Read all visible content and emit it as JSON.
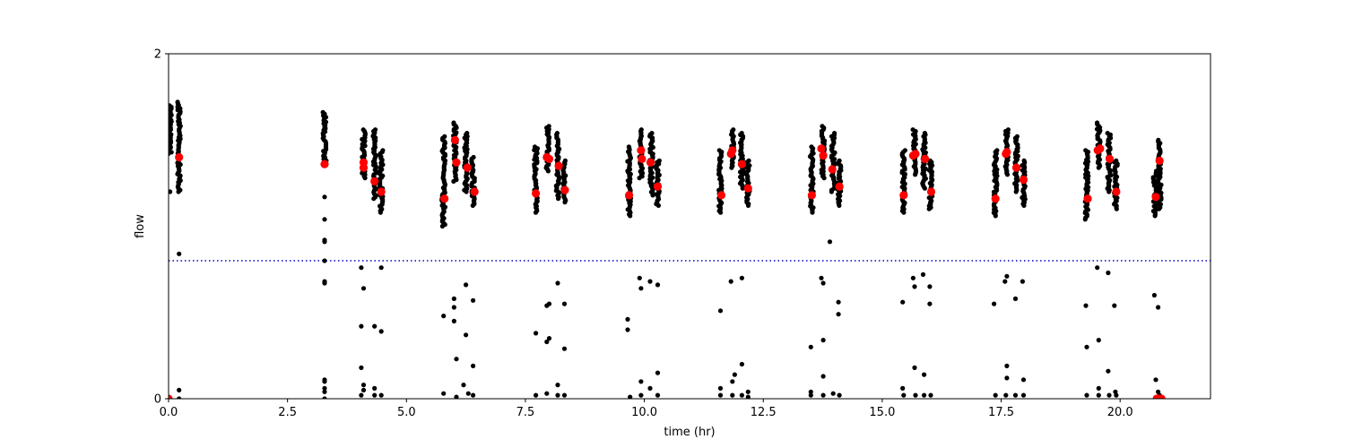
{
  "chart_data": {
    "type": "scatter",
    "title": "",
    "xlabel": "time (hr)",
    "ylabel": "flow",
    "xlim": [
      0,
      21.9
    ],
    "ylim": [
      0,
      2
    ],
    "x_ticks": [
      0,
      2.5,
      5,
      7.5,
      10,
      12.5,
      15,
      17.5,
      20
    ],
    "x_tick_labels": [
      "0.0",
      "2.5",
      "5.0",
      "7.5",
      "10.0",
      "12.5",
      "15.0",
      "17.5",
      "20.0"
    ],
    "y_ticks": [
      0,
      2
    ],
    "y_tick_labels": [
      "0",
      "2"
    ],
    "grid": false,
    "legend": "none",
    "threshold_line": {
      "y": 0.8,
      "style": "dotted",
      "color": "#0000cc"
    },
    "colors": {
      "raw": "#000000",
      "summary": "#ff0000"
    },
    "series": [
      {
        "marker": "small-dot",
        "color": "#000000",
        "clusters": [
          {
            "x": 0.03,
            "y_min": 1.42,
            "y_max": 1.7
          },
          {
            "x": 0.22,
            "y_min": 1.2,
            "y_max": 1.72
          },
          {
            "x": 3.28,
            "y_min": 1.38,
            "y_max": 1.66
          },
          {
            "x": 4.1,
            "y_min": 1.28,
            "y_max": 1.56
          },
          {
            "x": 4.33,
            "y_min": 1.16,
            "y_max": 1.56
          },
          {
            "x": 4.47,
            "y_min": 1.08,
            "y_max": 1.44
          },
          {
            "x": 5.78,
            "y_min": 1.0,
            "y_max": 1.52
          },
          {
            "x": 6.02,
            "y_min": 1.26,
            "y_max": 1.6
          },
          {
            "x": 6.25,
            "y_min": 1.2,
            "y_max": 1.54
          },
          {
            "x": 6.4,
            "y_min": 1.12,
            "y_max": 1.4
          },
          {
            "x": 7.72,
            "y_min": 1.08,
            "y_max": 1.46
          },
          {
            "x": 7.97,
            "y_min": 1.32,
            "y_max": 1.58
          },
          {
            "x": 8.18,
            "y_min": 1.16,
            "y_max": 1.54
          },
          {
            "x": 8.32,
            "y_min": 1.14,
            "y_max": 1.38
          },
          {
            "x": 9.68,
            "y_min": 1.06,
            "y_max": 1.46
          },
          {
            "x": 9.93,
            "y_min": 1.28,
            "y_max": 1.56
          },
          {
            "x": 10.15,
            "y_min": 1.18,
            "y_max": 1.54
          },
          {
            "x": 10.28,
            "y_min": 1.12,
            "y_max": 1.38
          },
          {
            "x": 11.6,
            "y_min": 1.08,
            "y_max": 1.44
          },
          {
            "x": 11.85,
            "y_min": 1.34,
            "y_max": 1.56
          },
          {
            "x": 12.05,
            "y_min": 1.22,
            "y_max": 1.54
          },
          {
            "x": 12.18,
            "y_min": 1.12,
            "y_max": 1.38
          },
          {
            "x": 13.52,
            "y_min": 1.08,
            "y_max": 1.46
          },
          {
            "x": 13.76,
            "y_min": 1.28,
            "y_max": 1.58
          },
          {
            "x": 13.97,
            "y_min": 1.2,
            "y_max": 1.54
          },
          {
            "x": 14.1,
            "y_min": 1.12,
            "y_max": 1.38
          },
          {
            "x": 15.45,
            "y_min": 1.08,
            "y_max": 1.44
          },
          {
            "x": 15.68,
            "y_min": 1.3,
            "y_max": 1.56
          },
          {
            "x": 15.88,
            "y_min": 1.22,
            "y_max": 1.54
          },
          {
            "x": 16.02,
            "y_min": 1.1,
            "y_max": 1.38
          },
          {
            "x": 17.38,
            "y_min": 1.06,
            "y_max": 1.44
          },
          {
            "x": 17.62,
            "y_min": 1.3,
            "y_max": 1.56
          },
          {
            "x": 17.82,
            "y_min": 1.2,
            "y_max": 1.52
          },
          {
            "x": 17.97,
            "y_min": 1.12,
            "y_max": 1.38
          },
          {
            "x": 19.3,
            "y_min": 1.04,
            "y_max": 1.44
          },
          {
            "x": 19.55,
            "y_min": 1.34,
            "y_max": 1.6
          },
          {
            "x": 19.77,
            "y_min": 1.2,
            "y_max": 1.54
          },
          {
            "x": 19.91,
            "y_min": 1.1,
            "y_max": 1.38
          },
          {
            "x": 20.73,
            "y_min": 1.06,
            "y_max": 1.32
          },
          {
            "x": 20.83,
            "y_min": 1.1,
            "y_max": 1.5
          }
        ],
        "points": [
          [
            0.03,
            1.2
          ],
          [
            0.22,
            0.84
          ],
          [
            0.03,
            0.0
          ],
          [
            0.22,
            0.05
          ],
          [
            0.22,
            0.0
          ],
          [
            3.28,
            1.17
          ],
          [
            3.28,
            1.04
          ],
          [
            3.28,
            0.92
          ],
          [
            3.28,
            0.91
          ],
          [
            3.28,
            0.8
          ],
          [
            3.28,
            0.68
          ],
          [
            3.28,
            0.67
          ],
          [
            3.28,
            0.11
          ],
          [
            3.28,
            0.1
          ],
          [
            3.28,
            0.06
          ],
          [
            3.28,
            0.04
          ],
          [
            3.28,
            0.0
          ],
          [
            4.05,
            0.76
          ],
          [
            4.1,
            0.64
          ],
          [
            4.05,
            0.42
          ],
          [
            4.05,
            0.18
          ],
          [
            4.1,
            0.08
          ],
          [
            4.1,
            0.05
          ],
          [
            4.05,
            0.02
          ],
          [
            4.33,
            0.42
          ],
          [
            4.33,
            0.06
          ],
          [
            4.33,
            0.02
          ],
          [
            4.47,
            0.76
          ],
          [
            4.47,
            0.39
          ],
          [
            4.47,
            0.02
          ],
          [
            5.78,
            0.48
          ],
          [
            5.78,
            0.03
          ],
          [
            6.0,
            0.58
          ],
          [
            6.0,
            0.53
          ],
          [
            6.0,
            0.45
          ],
          [
            6.05,
            0.23
          ],
          [
            6.05,
            0.01
          ],
          [
            6.25,
            0.66
          ],
          [
            6.2,
            0.08
          ],
          [
            6.25,
            0.37
          ],
          [
            6.4,
            0.57
          ],
          [
            6.4,
            0.19
          ],
          [
            6.4,
            0.02
          ],
          [
            6.3,
            0.03
          ],
          [
            7.72,
            0.38
          ],
          [
            7.72,
            0.02
          ],
          [
            7.95,
            0.54
          ],
          [
            7.95,
            0.33
          ],
          [
            8.0,
            0.55
          ],
          [
            8.0,
            0.35
          ],
          [
            7.95,
            0.03
          ],
          [
            8.18,
            0.67
          ],
          [
            8.18,
            0.08
          ],
          [
            8.18,
            0.02
          ],
          [
            8.32,
            0.55
          ],
          [
            8.32,
            0.29
          ],
          [
            8.32,
            0.02
          ],
          [
            9.65,
            0.46
          ],
          [
            9.65,
            0.4
          ],
          [
            9.7,
            0.01
          ],
          [
            9.9,
            0.7
          ],
          [
            9.93,
            0.64
          ],
          [
            9.93,
            0.1
          ],
          [
            9.93,
            0.02
          ],
          [
            10.12,
            0.68
          ],
          [
            10.12,
            0.06
          ],
          [
            10.28,
            0.66
          ],
          [
            10.28,
            0.15
          ],
          [
            10.28,
            0.02
          ],
          [
            11.6,
            0.51
          ],
          [
            11.6,
            0.06
          ],
          [
            11.6,
            0.02
          ],
          [
            11.82,
            0.68
          ],
          [
            11.85,
            0.1
          ],
          [
            11.85,
            0.02
          ],
          [
            11.9,
            0.14
          ],
          [
            12.05,
            0.7
          ],
          [
            12.05,
            0.2
          ],
          [
            12.05,
            0.02
          ],
          [
            12.18,
            0.04
          ],
          [
            12.18,
            0.01
          ],
          [
            13.5,
            0.3
          ],
          [
            13.5,
            0.04
          ],
          [
            13.5,
            0.02
          ],
          [
            13.72,
            0.7
          ],
          [
            13.76,
            0.67
          ],
          [
            13.76,
            0.34
          ],
          [
            13.76,
            0.13
          ],
          [
            13.76,
            0.02
          ],
          [
            13.9,
            0.91
          ],
          [
            13.97,
            0.03
          ],
          [
            14.08,
            0.56
          ],
          [
            14.08,
            0.49
          ],
          [
            14.1,
            0.02
          ],
          [
            15.43,
            0.56
          ],
          [
            15.43,
            0.06
          ],
          [
            15.45,
            0.02
          ],
          [
            15.65,
            0.7
          ],
          [
            15.68,
            0.65
          ],
          [
            15.68,
            0.18
          ],
          [
            15.7,
            0.02
          ],
          [
            15.86,
            0.72
          ],
          [
            15.88,
            0.14
          ],
          [
            15.88,
            0.02
          ],
          [
            16.0,
            0.65
          ],
          [
            16.0,
            0.55
          ],
          [
            16.02,
            0.02
          ],
          [
            17.35,
            0.55
          ],
          [
            17.38,
            0.02
          ],
          [
            17.58,
            0.68
          ],
          [
            17.62,
            0.71
          ],
          [
            17.62,
            0.19
          ],
          [
            17.62,
            0.12
          ],
          [
            17.6,
            0.02
          ],
          [
            17.8,
            0.58
          ],
          [
            17.8,
            0.02
          ],
          [
            17.95,
            0.68
          ],
          [
            17.97,
            0.11
          ],
          [
            17.97,
            0.02
          ],
          [
            19.28,
            0.54
          ],
          [
            19.3,
            0.3
          ],
          [
            19.3,
            0.02
          ],
          [
            19.52,
            0.76
          ],
          [
            19.55,
            0.34
          ],
          [
            19.55,
            0.06
          ],
          [
            19.55,
            0.02
          ],
          [
            19.75,
            0.73
          ],
          [
            19.75,
            0.16
          ],
          [
            19.77,
            0.02
          ],
          [
            19.88,
            0.54
          ],
          [
            19.9,
            0.04
          ],
          [
            19.92,
            0.02
          ],
          [
            20.72,
            0.6
          ],
          [
            20.75,
            0.11
          ],
          [
            20.8,
            0.53
          ],
          [
            20.8,
            0.04
          ],
          [
            20.83,
            0.02
          ]
        ]
      },
      {
        "marker": "large-dot",
        "color": "#ff0000",
        "points": [
          [
            0.0,
            0.0
          ],
          [
            0.22,
            1.4
          ],
          [
            3.28,
            1.36
          ],
          [
            4.1,
            1.37
          ],
          [
            4.1,
            1.34
          ],
          [
            4.33,
            1.26
          ],
          [
            4.47,
            1.2
          ],
          [
            5.8,
            1.16
          ],
          [
            6.02,
            1.5
          ],
          [
            6.05,
            1.37
          ],
          [
            6.28,
            1.34
          ],
          [
            6.43,
            1.2
          ],
          [
            7.72,
            1.19
          ],
          [
            7.95,
            1.4
          ],
          [
            8.0,
            1.39
          ],
          [
            8.2,
            1.35
          ],
          [
            8.33,
            1.21
          ],
          [
            9.68,
            1.18
          ],
          [
            9.93,
            1.44
          ],
          [
            9.95,
            1.39
          ],
          [
            10.13,
            1.37
          ],
          [
            10.28,
            1.23
          ],
          [
            11.62,
            1.18
          ],
          [
            11.82,
            1.42
          ],
          [
            11.85,
            1.44
          ],
          [
            12.05,
            1.36
          ],
          [
            12.18,
            1.22
          ],
          [
            13.52,
            1.18
          ],
          [
            13.72,
            1.45
          ],
          [
            13.76,
            1.41
          ],
          [
            13.95,
            1.33
          ],
          [
            14.1,
            1.23
          ],
          [
            15.45,
            1.18
          ],
          [
            15.65,
            1.41
          ],
          [
            15.7,
            1.42
          ],
          [
            15.9,
            1.39
          ],
          [
            16.03,
            1.2
          ],
          [
            17.38,
            1.16
          ],
          [
            17.6,
            1.42
          ],
          [
            17.62,
            1.43
          ],
          [
            17.82,
            1.34
          ],
          [
            17.97,
            1.27
          ],
          [
            19.32,
            1.16
          ],
          [
            19.53,
            1.44
          ],
          [
            19.58,
            1.45
          ],
          [
            19.78,
            1.39
          ],
          [
            19.92,
            1.2
          ],
          [
            20.75,
            1.17
          ],
          [
            20.83,
            1.38
          ],
          [
            20.82,
            0.0
          ],
          [
            20.87,
            0.0
          ],
          [
            20.77,
            0.0
          ]
        ]
      }
    ]
  }
}
